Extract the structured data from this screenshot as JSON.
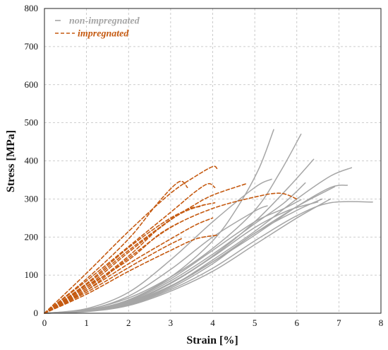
{
  "chart_data": {
    "type": "line",
    "title": "",
    "xlabel": "Strain [%]",
    "ylabel": "Stress [MPa]",
    "xlim": [
      0,
      8
    ],
    "ylim": [
      0,
      800
    ],
    "x_ticks": [
      "0",
      "1",
      "2",
      "3",
      "4",
      "5",
      "6",
      "7",
      "8"
    ],
    "y_ticks": [
      "0",
      "100",
      "200",
      "300",
      "400",
      "500",
      "600",
      "700",
      "800"
    ],
    "grid": true,
    "legend_position": "top-left",
    "colors": {
      "non_impregnated": "#a6a6a6",
      "impregnated": "#c55a11"
    },
    "legend": [
      {
        "label": "non-impregnated",
        "style": "solid",
        "color": "#a6a6a6"
      },
      {
        "label": "impregnated",
        "style": "dashed",
        "color": "#c55a11"
      }
    ],
    "series": [
      {
        "group": "non-impregnated",
        "points": [
          [
            0,
            0
          ],
          [
            1,
            8
          ],
          [
            2,
            35
          ],
          [
            3,
            95
          ],
          [
            4,
            190
          ],
          [
            4.6,
            280
          ],
          [
            5.1,
            380
          ],
          [
            5.45,
            482
          ]
        ]
      },
      {
        "group": "non-impregnated",
        "points": [
          [
            0,
            0
          ],
          [
            1,
            10
          ],
          [
            2,
            40
          ],
          [
            3,
            95
          ],
          [
            4,
            170
          ],
          [
            5,
            270
          ],
          [
            5.6,
            370
          ],
          [
            6.1,
            470
          ]
        ]
      },
      {
        "group": "non-impregnated",
        "points": [
          [
            0,
            0
          ],
          [
            1,
            6
          ],
          [
            2,
            30
          ],
          [
            3,
            80
          ],
          [
            4,
            150
          ],
          [
            5,
            240
          ],
          [
            5.8,
            330
          ],
          [
            6.4,
            404
          ]
        ]
      },
      {
        "group": "non-impregnated",
        "points": [
          [
            0,
            0
          ],
          [
            1,
            5
          ],
          [
            2,
            25
          ],
          [
            3,
            70
          ],
          [
            4,
            140
          ],
          [
            5,
            215
          ],
          [
            6,
            300
          ],
          [
            6.8,
            360
          ],
          [
            7.3,
            382
          ]
        ]
      },
      {
        "group": "non-impregnated",
        "points": [
          [
            0,
            0
          ],
          [
            1,
            6
          ],
          [
            2,
            28
          ],
          [
            3,
            72
          ],
          [
            4,
            135
          ],
          [
            5,
            205
          ],
          [
            6,
            280
          ],
          [
            6.8,
            330
          ],
          [
            7.2,
            336
          ]
        ]
      },
      {
        "group": "non-impregnated",
        "points": [
          [
            0,
            0
          ],
          [
            1,
            12
          ],
          [
            2,
            55
          ],
          [
            3,
            140
          ],
          [
            4,
            240
          ],
          [
            5,
            330
          ],
          [
            5.4,
            352
          ]
        ]
      },
      {
        "group": "non-impregnated",
        "points": [
          [
            0,
            0
          ],
          [
            1,
            8
          ],
          [
            2,
            32
          ],
          [
            3,
            85
          ],
          [
            4,
            155
          ],
          [
            5,
            235
          ],
          [
            5.7,
            290
          ],
          [
            6.2,
            342
          ]
        ]
      },
      {
        "group": "non-impregnated",
        "points": [
          [
            0,
            0
          ],
          [
            1,
            5
          ],
          [
            2,
            22
          ],
          [
            3,
            62
          ],
          [
            4,
            118
          ],
          [
            5,
            190
          ],
          [
            6,
            256
          ],
          [
            6.8,
            290
          ],
          [
            7.8,
            292
          ]
        ]
      },
      {
        "group": "non-impregnated",
        "points": [
          [
            0,
            0
          ],
          [
            1,
            5
          ],
          [
            2,
            24
          ],
          [
            3,
            66
          ],
          [
            4,
            130
          ],
          [
            5,
            210
          ],
          [
            6,
            270
          ],
          [
            6.6,
            300
          ]
        ]
      },
      {
        "group": "non-impregnated",
        "points": [
          [
            0,
            0
          ],
          [
            1,
            9
          ],
          [
            2,
            45
          ],
          [
            3,
            115
          ],
          [
            4,
            200
          ],
          [
            5,
            268
          ],
          [
            5.3,
            282
          ]
        ]
      },
      {
        "group": "non-impregnated",
        "points": [
          [
            0,
            0
          ],
          [
            1,
            7
          ],
          [
            2,
            34
          ],
          [
            3,
            90
          ],
          [
            4,
            165
          ],
          [
            5,
            240
          ],
          [
            5.7,
            275
          ],
          [
            6.1,
            298
          ]
        ]
      },
      {
        "group": "non-impregnated",
        "points": [
          [
            0,
            0
          ],
          [
            1,
            6
          ],
          [
            2,
            28
          ],
          [
            3,
            78
          ],
          [
            4,
            148
          ],
          [
            5,
            225
          ],
          [
            5.8,
            270
          ],
          [
            6.5,
            292
          ]
        ]
      },
      {
        "group": "non-impregnated",
        "points": [
          [
            0,
            0
          ],
          [
            1,
            5
          ],
          [
            2,
            26
          ],
          [
            3,
            70
          ],
          [
            4,
            135
          ],
          [
            5,
            210
          ],
          [
            6,
            280
          ],
          [
            6.9,
            332
          ]
        ]
      },
      {
        "group": "non-impregnated",
        "points": [
          [
            0,
            0
          ],
          [
            1,
            4
          ],
          [
            2,
            20
          ],
          [
            3,
            58
          ],
          [
            4,
            110
          ],
          [
            5,
            180
          ],
          [
            6,
            250
          ],
          [
            6.8,
            300
          ]
        ]
      },
      {
        "group": "impregnated",
        "points": [
          [
            0,
            0
          ],
          [
            1,
            105
          ],
          [
            2,
            215
          ],
          [
            3,
            315
          ],
          [
            3.6,
            360
          ],
          [
            4,
            385
          ],
          [
            4.1,
            380
          ]
        ]
      },
      {
        "group": "impregnated",
        "points": [
          [
            0,
            0
          ],
          [
            1,
            90
          ],
          [
            2,
            195
          ],
          [
            2.7,
            290
          ],
          [
            3.2,
            345
          ],
          [
            3.4,
            330
          ]
        ]
      },
      {
        "group": "impregnated",
        "points": [
          [
            0,
            0
          ],
          [
            1,
            85
          ],
          [
            2,
            175
          ],
          [
            3,
            265
          ],
          [
            3.6,
            320
          ],
          [
            3.9,
            340
          ],
          [
            4.05,
            330
          ]
        ]
      },
      {
        "group": "impregnated",
        "points": [
          [
            0,
            0
          ],
          [
            1,
            70
          ],
          [
            2,
            160
          ],
          [
            3,
            245
          ],
          [
            3.5,
            280
          ],
          [
            4,
            310
          ],
          [
            4.8,
            340
          ]
        ]
      },
      {
        "group": "impregnated",
        "points": [
          [
            0,
            0
          ],
          [
            1,
            60
          ],
          [
            2,
            145
          ],
          [
            3,
            225
          ],
          [
            4,
            275
          ],
          [
            5,
            305
          ],
          [
            5.6,
            315
          ],
          [
            6,
            300
          ]
        ]
      },
      {
        "group": "impregnated",
        "points": [
          [
            0,
            0
          ],
          [
            1,
            78
          ],
          [
            2,
            172
          ],
          [
            3,
            250
          ],
          [
            3.6,
            278
          ],
          [
            4.05,
            290
          ]
        ]
      },
      {
        "group": "impregnated",
        "points": [
          [
            0,
            0
          ],
          [
            1,
            60
          ],
          [
            2,
            130
          ],
          [
            3,
            195
          ],
          [
            3.6,
            232
          ],
          [
            4,
            250
          ]
        ]
      },
      {
        "group": "impregnated",
        "points": [
          [
            0,
            0
          ],
          [
            1,
            50
          ],
          [
            2,
            110
          ],
          [
            3,
            165
          ],
          [
            3.6,
            195
          ],
          [
            4.1,
            205
          ]
        ]
      },
      {
        "group": "impregnated",
        "points": [
          [
            0,
            0
          ],
          [
            1,
            65
          ],
          [
            2,
            150
          ],
          [
            2.8,
            230
          ],
          [
            3.4,
            272
          ],
          [
            3.7,
            280
          ]
        ]
      },
      {
        "group": "impregnated",
        "points": [
          [
            0,
            0
          ],
          [
            1,
            75
          ],
          [
            2,
            165
          ],
          [
            3,
            245
          ],
          [
            3.4,
            270
          ],
          [
            3.8,
            285
          ]
        ]
      },
      {
        "group": "impregnated",
        "points": [
          [
            0,
            0
          ],
          [
            1,
            55
          ],
          [
            2,
            120
          ],
          [
            2.8,
            170
          ],
          [
            3.3,
            198
          ]
        ]
      },
      {
        "group": "impregnated",
        "points": [
          [
            0,
            0
          ],
          [
            1,
            70
          ],
          [
            2,
            140
          ],
          [
            2.7,
            205
          ],
          [
            3.2,
            238
          ]
        ]
      }
    ]
  }
}
